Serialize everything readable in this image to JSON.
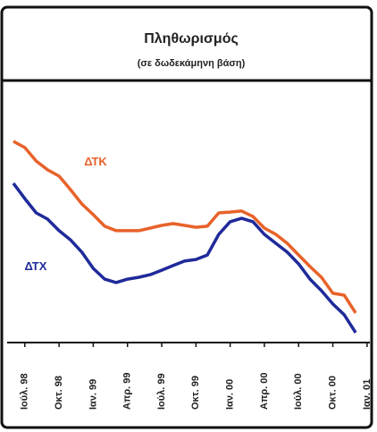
{
  "chart_data": {
    "type": "line",
    "title": "Πληθωρισμός",
    "subtitle": "(σε δωδεκάμηνη βάση)",
    "categories": [
      null,
      "Ιούλ. 98",
      null,
      null,
      "Οκτ. 98",
      null,
      null,
      "Ιαν. 99",
      null,
      null,
      "Απρ. 99",
      null,
      null,
      "Ιούλ. 99",
      null,
      null,
      "Οκτ. 99",
      null,
      null,
      "Ιαν. 00",
      null,
      null,
      "Απρ. 00",
      null,
      null,
      "Ιούλ. 00",
      null,
      null,
      "Οκτ. 00",
      null,
      null,
      "Ιαν. 01"
    ],
    "series": [
      {
        "name": "ΔΤΚ",
        "color": "#e8622a",
        "values": [
          76.8,
          74.4,
          69.3,
          65.9,
          63.5,
          58.4,
          52.9,
          48.8,
          44.4,
          42.7,
          42.7,
          42.7,
          43.7,
          44.7,
          45.4,
          44.7,
          44.0,
          44.4,
          49.5,
          49.8,
          50.2,
          48.1,
          43.7,
          41.3,
          37.9,
          33.4,
          29.0,
          24.9,
          18.8,
          18.1,
          11.3,
          null
        ]
      },
      {
        "name": "ΔΤΧ",
        "color": "#1f2a9a",
        "values": [
          60.8,
          54.9,
          49.5,
          47.1,
          42.7,
          39.2,
          34.5,
          28.3,
          24.2,
          22.9,
          24.2,
          24.9,
          25.9,
          27.6,
          29.4,
          31.1,
          31.7,
          33.4,
          41.3,
          46.1,
          47.4,
          46.1,
          41.3,
          37.9,
          34.5,
          30.0,
          24.2,
          19.8,
          14.7,
          10.6,
          3.8,
          null
        ]
      }
    ],
    "ylim": [
      0,
      100
    ]
  }
}
